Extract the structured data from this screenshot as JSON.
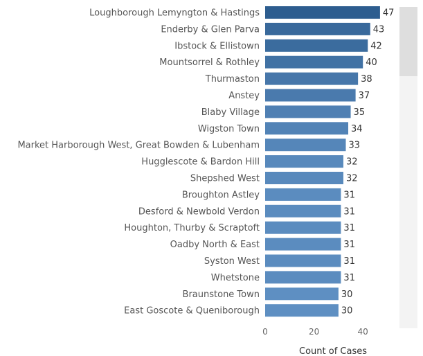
{
  "chart_data": {
    "type": "bar",
    "orientation": "horizontal",
    "categories": [
      "Loughborough Lemyngton & Hastings",
      "Enderby & Glen Parva",
      "Ibstock & Ellistown",
      "Mountsorrel & Rothley",
      "Thurmaston",
      "Anstey",
      "Blaby Village",
      "Wigston Town",
      "Market Harborough West, Great Bowden & Lubenham",
      "Hugglescote & Bardon Hill",
      "Shepshed West",
      "Broughton Astley",
      "Desford & Newbold Verdon",
      "Houghton, Thurby & Scraptoft",
      "Oadby North & East",
      "Syston West",
      "Whetstone",
      "Braunstone Town",
      "East Goscote & Queniborough"
    ],
    "values": [
      47,
      43,
      42,
      40,
      38,
      37,
      35,
      34,
      33,
      32,
      32,
      31,
      31,
      31,
      31,
      31,
      31,
      30,
      30
    ],
    "xlabel": "Count of Cases",
    "ylabel": "",
    "xlim": [
      0,
      50
    ],
    "xticks": [
      0,
      20,
      40
    ],
    "grid": false,
    "legend": "none",
    "colors": {
      "dark": "#2d5d8f",
      "light": "#5e8fc2"
    }
  },
  "scrollbar": {
    "position_fraction": 0
  }
}
